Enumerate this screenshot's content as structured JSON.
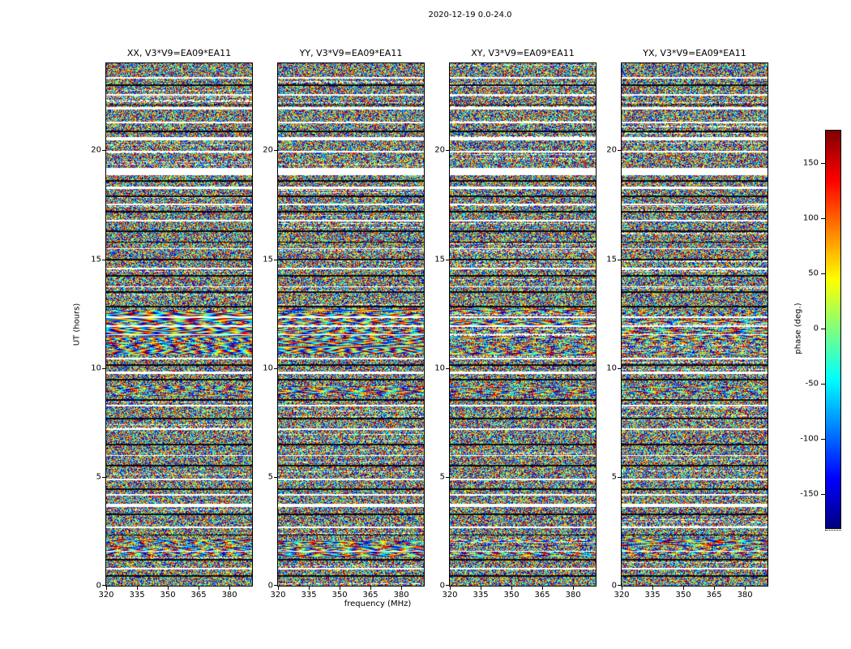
{
  "chart_data": {
    "type": "heatmap",
    "title": "2020-12-19 0.0-24.0",
    "xlabel": "frequency (MHz)",
    "ylabel": "UT (hours)",
    "colorbar_label": "phase (deg.)",
    "colormap": "jet",
    "value_range": [
      -180,
      180
    ],
    "colorbar_ticks": [
      150,
      100,
      50,
      0,
      -50,
      -100,
      -150
    ],
    "x_range": [
      320,
      391
    ],
    "x_ticks": [
      320,
      335,
      350,
      365,
      380
    ],
    "y_range": [
      0,
      24
    ],
    "y_ticks": [
      0,
      5,
      10,
      15,
      20
    ],
    "panels": [
      {
        "pol": "XX",
        "title": "XX, V3*V9=EA09*EA11",
        "fringes": "strong",
        "seed": 11
      },
      {
        "pol": "YY",
        "title": "YY, V3*V9=EA09*EA11",
        "fringes": "strong",
        "seed": 23
      },
      {
        "pol": "XY",
        "title": "XY, V3*V9=EA09*EA11",
        "fringes": "weak",
        "seed": 37
      },
      {
        "pol": "YX",
        "title": "YX, V3*V9=EA09*EA11",
        "fringes": "weak",
        "seed": 53
      }
    ],
    "white_gaps": [
      {
        "ut": 23.35,
        "h": 0.1
      },
      {
        "ut": 22.55,
        "h": 0.08
      },
      {
        "ut": 21.95,
        "h": 0.12
      },
      {
        "ut": 21.3,
        "h": 0.08
      },
      {
        "ut": 20.55,
        "h": 0.18
      },
      {
        "ut": 19.95,
        "h": 0.08
      },
      {
        "ut": 19.05,
        "h": 0.32
      },
      {
        "ut": 18.3,
        "h": 0.1
      },
      {
        "ut": 17.55,
        "h": 0.07
      },
      {
        "ut": 16.8,
        "h": 0.06
      },
      {
        "ut": 15.5,
        "h": 0.06
      },
      {
        "ut": 14.6,
        "h": 0.06
      },
      {
        "ut": 13.75,
        "h": 0.06
      },
      {
        "ut": 12.35,
        "h": 0.06
      },
      {
        "ut": 11.95,
        "h": 0.08
      },
      {
        "ut": 11.55,
        "h": 0.06
      },
      {
        "ut": 10.45,
        "h": 0.08
      },
      {
        "ut": 9.8,
        "h": 0.1
      },
      {
        "ut": 8.3,
        "h": 0.06
      },
      {
        "ut": 7.2,
        "h": 0.06
      },
      {
        "ut": 6.0,
        "h": 0.06
      },
      {
        "ut": 4.9,
        "h": 0.06
      },
      {
        "ut": 4.2,
        "h": 0.06
      },
      {
        "ut": 3.7,
        "h": 0.14
      },
      {
        "ut": 2.7,
        "h": 0.06
      },
      {
        "ut": 1.6,
        "h": 0.06
      },
      {
        "ut": 0.8,
        "h": 0.06
      }
    ],
    "dark_rows": [
      23.0,
      22.1,
      20.9,
      18.6,
      17.9,
      17.2,
      16.3,
      15.8,
      15.0,
      14.25,
      13.5,
      12.85,
      10.15,
      9.5,
      8.55,
      7.7,
      6.5,
      5.55,
      4.45,
      3.3,
      2.35,
      1.2,
      0.45
    ],
    "fringe_bands": [
      {
        "ut_lo": 10.65,
        "ut_hi": 12.75,
        "strength_main": 0.8,
        "strength_cross": 0.28
      },
      {
        "ut_lo": 8.75,
        "ut_hi": 9.2,
        "strength_main": 0.55,
        "strength_cross": 0.2
      },
      {
        "ut_lo": 1.35,
        "ut_hi": 2.15,
        "strength_main": 0.5,
        "strength_cross": 0.45
      }
    ]
  }
}
